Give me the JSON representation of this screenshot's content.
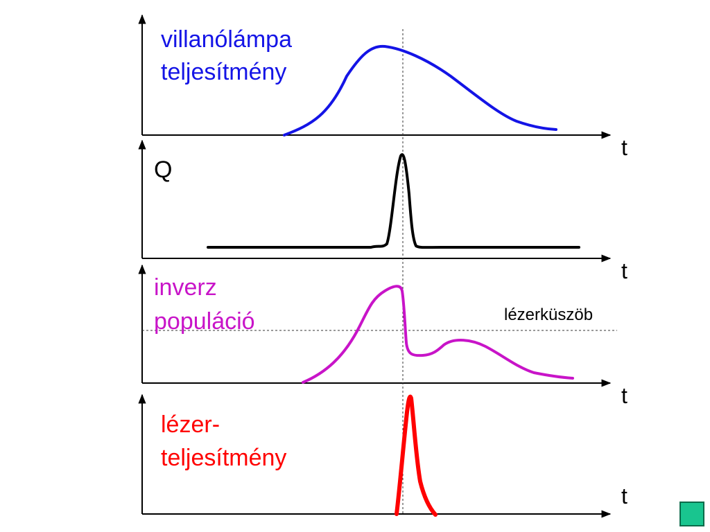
{
  "labels": {
    "flash_line1": "villanólámpa",
    "flash_line2": "teljesítmény",
    "q": "Q",
    "inv_line1": "inverz",
    "inv_line2": "populáció",
    "threshold": "lézerküszöb",
    "laser_line1": "lézer-",
    "laser_line2": "teljesítmény",
    "t1": "t",
    "t2": "t",
    "t3": "t",
    "t4": "t"
  },
  "colors": {
    "flash": "#1414e6",
    "q": "#000000",
    "inversion": "#c814c8",
    "laser": "#ff0000",
    "nav_button": "#19c58f"
  },
  "icons": {
    "nav_button": "green-square-icon"
  }
}
